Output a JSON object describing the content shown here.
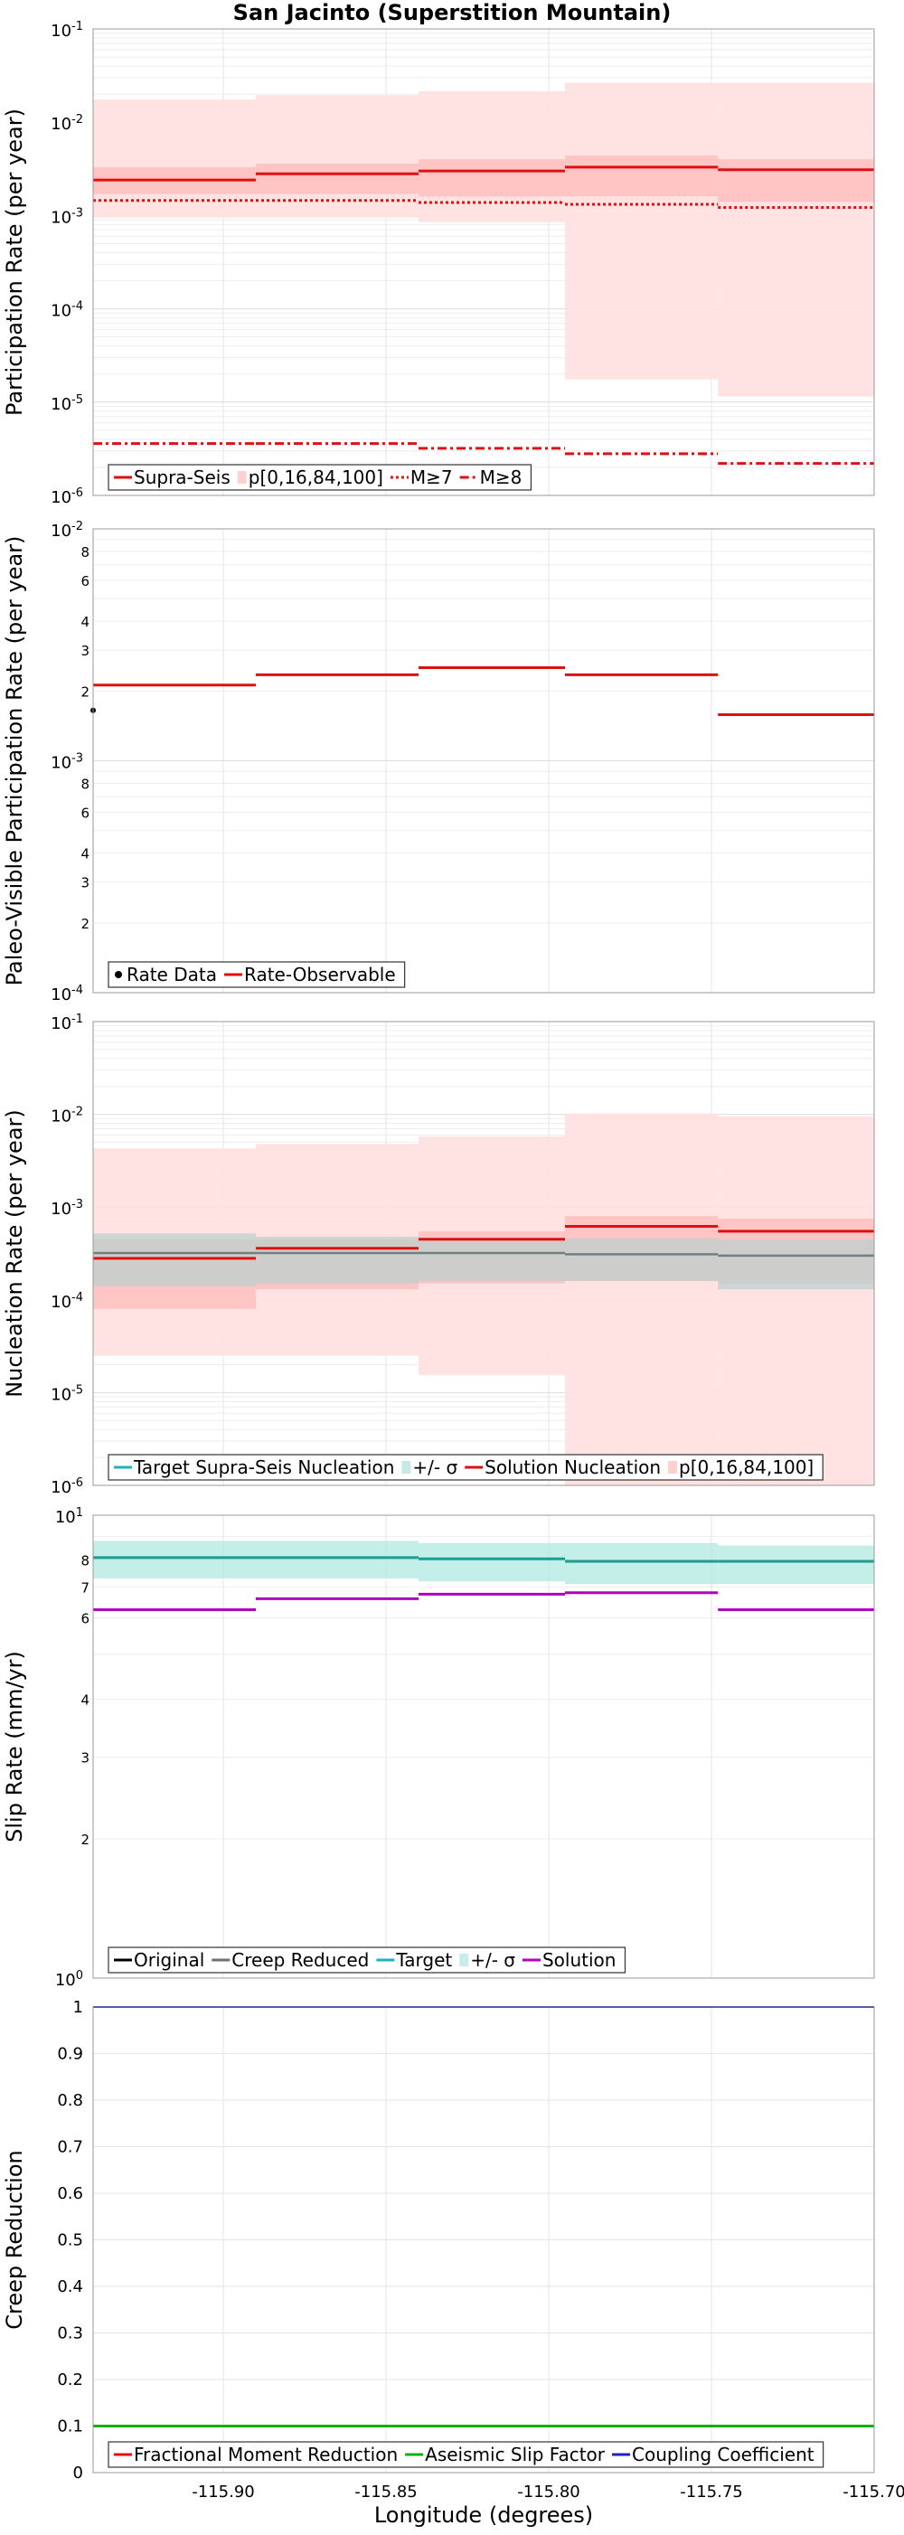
{
  "title": "San Jacinto (Superstition Mountain)",
  "x_axis": {
    "label": "Longitude (degrees)",
    "min": -115.94,
    "max": -115.7,
    "ticks": [
      -115.9,
      -115.85,
      -115.8,
      -115.75,
      -115.7
    ],
    "tick_labels": [
      "-115.90",
      "-115.85",
      "-115.80",
      "-115.75",
      "-115.70"
    ]
  },
  "segments": [
    -115.94,
    -115.89,
    -115.84,
    -115.795,
    -115.748,
    -115.7
  ],
  "chart_data": [
    {
      "type": "line",
      "panel": "participation",
      "ylabel": "Participation Rate (per year)",
      "yscale": "log",
      "ylim": [
        1e-06,
        0.1
      ],
      "ytick_labels": [
        {
          "v": 0.1,
          "b": "10",
          "e": "-1"
        },
        {
          "v": 0.01,
          "b": "10",
          "e": "-2"
        },
        {
          "v": 0.001,
          "b": "10",
          "e": "-3"
        },
        {
          "v": 0.0001,
          "b": "10",
          "e": "-4"
        },
        {
          "v": 1e-05,
          "b": "10",
          "e": "-5"
        },
        {
          "v": 1e-06,
          "b": "10",
          "e": "-6"
        }
      ],
      "bands": [
        {
          "role": "p0_100",
          "color": "#ffe0e0",
          "lower": [
            0.00095,
            0.00095,
            0.00085,
            1.75e-05,
            1.15e-05
          ],
          "upper": [
            0.0175,
            0.0195,
            0.0215,
            0.0265,
            0.0265
          ]
        },
        {
          "role": "p16_84",
          "color": "#ffc0c0",
          "lower": [
            0.0017,
            0.0017,
            0.0016,
            0.0016,
            0.0014
          ],
          "upper": [
            0.0033,
            0.0036,
            0.004,
            0.0044,
            0.004
          ]
        }
      ],
      "series": [
        {
          "name": "Supra-Seis",
          "color": "#e01010",
          "style": "solid",
          "width": 3,
          "values": [
            0.0024,
            0.0028,
            0.003,
            0.0033,
            0.0031
          ]
        },
        {
          "name": "M≥7",
          "color": "#e01010",
          "style": "dotted",
          "width": 3,
          "values": [
            0.00145,
            0.00145,
            0.00138,
            0.00132,
            0.00122
          ]
        },
        {
          "name": "M≥8",
          "color": "#e01010",
          "style": "dashdot",
          "width": 3,
          "values": [
            3.6e-06,
            3.6e-06,
            3.2e-06,
            2.8e-06,
            2.2e-06
          ]
        }
      ],
      "legend": {
        "position": "bottom-left",
        "items": [
          {
            "name": "Supra-Seis",
            "kind": "line",
            "color": "#e01010",
            "style": "solid"
          },
          {
            "name": "p[0,16,84,100]",
            "kind": "patch",
            "color": "#ffd0d0"
          },
          {
            "name": "M≥7",
            "kind": "line",
            "color": "#e01010",
            "style": "dotted"
          },
          {
            "name": "M≥8",
            "kind": "line",
            "color": "#e01010",
            "style": "dashdot"
          }
        ]
      }
    },
    {
      "type": "line",
      "panel": "paleo",
      "ylabel": "Paleo-Visible Participation Rate (per year)",
      "yscale": "log",
      "ylim": [
        0.0001,
        0.01
      ],
      "ytick_labels": [
        {
          "v": 0.01,
          "b": "10",
          "e": "-2"
        },
        {
          "v": 0.008,
          "t": "8"
        },
        {
          "v": 0.006,
          "t": "6"
        },
        {
          "v": 0.004,
          "t": "4"
        },
        {
          "v": 0.003,
          "t": "3"
        },
        {
          "v": 0.002,
          "t": "2"
        },
        {
          "v": 0.001,
          "b": "10",
          "e": "-3"
        },
        {
          "v": 0.0008,
          "t": "8"
        },
        {
          "v": 0.0006,
          "t": "6"
        },
        {
          "v": 0.0004,
          "t": "4"
        },
        {
          "v": 0.0003,
          "t": "3"
        },
        {
          "v": 0.0002,
          "t": "2"
        },
        {
          "v": 0.0001,
          "b": "10",
          "e": "-4"
        }
      ],
      "points": [
        {
          "x": -115.94,
          "y": 0.00165
        }
      ],
      "series": [
        {
          "name": "Rate-Observable",
          "color": "#e01010",
          "style": "solid",
          "width": 3,
          "values": [
            0.00212,
            0.00235,
            0.00252,
            0.00235,
            0.00158
          ]
        }
      ],
      "legend": {
        "position": "bottom-left",
        "items": [
          {
            "name": "Rate Data",
            "kind": "dot",
            "color": "#000000"
          },
          {
            "name": "Rate-Observable",
            "kind": "line",
            "color": "#e01010",
            "style": "solid"
          }
        ]
      }
    },
    {
      "type": "line",
      "panel": "nucleation",
      "ylabel": "Nucleation Rate (per year)",
      "yscale": "log",
      "ylim": [
        1e-06,
        0.1
      ],
      "ytick_labels": [
        {
          "v": 0.1,
          "b": "10",
          "e": "-1"
        },
        {
          "v": 0.01,
          "b": "10",
          "e": "-2"
        },
        {
          "v": 0.001,
          "b": "10",
          "e": "-3"
        },
        {
          "v": 0.0001,
          "b": "10",
          "e": "-4"
        },
        {
          "v": 1e-05,
          "b": "10",
          "e": "-5"
        },
        {
          "v": 1e-06,
          "b": "10",
          "e": "-6"
        }
      ],
      "bands": [
        {
          "role": "p0_100",
          "color": "#ffe0e0",
          "lower": [
            2.5e-05,
            2.5e-05,
            1.55e-05,
            1e-06,
            1e-06
          ],
          "upper": [
            0.0043,
            0.0048,
            0.0058,
            0.0102,
            0.0095
          ]
        },
        {
          "role": "p16_84",
          "color": "#ffc0c0",
          "lower": [
            8e-05,
            0.00013,
            0.00015,
            0.00016,
            0.00015
          ],
          "upper": [
            0.00045,
            0.00045,
            0.00055,
            0.0008,
            0.00075
          ]
        },
        {
          "role": "target_sigma",
          "color": "#bcd2cd",
          "lower": [
            0.00014,
            0.00015,
            0.00016,
            0.00016,
            0.00013
          ],
          "upper": [
            0.00052,
            0.00048,
            0.00047,
            0.00046,
            0.00045
          ]
        }
      ],
      "series": [
        {
          "name": "Target Supra-Seis Nucleation",
          "color": "#708080",
          "style": "solid",
          "width": 2.5,
          "values": [
            0.00032,
            0.00032,
            0.00032,
            0.00031,
            0.0003
          ]
        },
        {
          "name": "Solution Nucleation",
          "color": "#e01010",
          "style": "solid",
          "width": 3,
          "values": [
            0.00028,
            0.00036,
            0.00045,
            0.00062,
            0.00055
          ]
        }
      ],
      "legend": {
        "position": "bottom-left",
        "items": [
          {
            "name": "Target Supra-Seis Nucleation",
            "kind": "line",
            "color": "#20b0c0",
            "style": "solid"
          },
          {
            "name": "+/- σ",
            "kind": "patch",
            "color": "#c8e8e8"
          },
          {
            "name": "Solution Nucleation",
            "kind": "line",
            "color": "#e01010",
            "style": "solid"
          },
          {
            "name": "p[0,16,84,100]",
            "kind": "patch",
            "color": "#ffd0d0"
          }
        ]
      }
    },
    {
      "type": "line",
      "panel": "slip",
      "ylabel": "Slip Rate (mm/yr)",
      "yscale": "log",
      "ylim": [
        1,
        10
      ],
      "ytick_labels": [
        {
          "v": 10,
          "b": "10",
          "e": "1"
        },
        {
          "v": 8,
          "t": "8"
        },
        {
          "v": 7,
          "t": "7"
        },
        {
          "v": 6,
          "t": "6"
        },
        {
          "v": 4,
          "t": "4"
        },
        {
          "v": 3,
          "t": "3"
        },
        {
          "v": 2,
          "t": "2"
        },
        {
          "v": 1,
          "b": "10",
          "e": "0"
        }
      ],
      "bands": [
        {
          "role": "target_sigma",
          "color": "#b0e8e0",
          "lower": [
            7.3,
            7.3,
            7.2,
            7.1,
            7.1
          ],
          "upper": [
            8.8,
            8.8,
            8.7,
            8.7,
            8.6
          ]
        }
      ],
      "series": [
        {
          "name": "Target",
          "color": "#1a9e94",
          "style": "solid",
          "width": 3,
          "values": [
            8.1,
            8.1,
            8.05,
            7.95,
            7.95
          ]
        },
        {
          "name": "Solution",
          "color": "#b000c0",
          "style": "solid",
          "width": 3,
          "values": [
            6.25,
            6.6,
            6.75,
            6.8,
            6.25
          ]
        }
      ],
      "legend": {
        "position": "bottom-left",
        "items": [
          {
            "name": "Original",
            "kind": "line",
            "color": "#000000",
            "style": "solid"
          },
          {
            "name": "Creep Reduced",
            "kind": "line",
            "color": "#707070",
            "style": "solid"
          },
          {
            "name": "Target",
            "kind": "line",
            "color": "#20b0c0",
            "style": "solid"
          },
          {
            "name": "+/- σ",
            "kind": "patch",
            "color": "#c8ecec"
          },
          {
            "name": "Solution",
            "kind": "line",
            "color": "#b000c0",
            "style": "solid"
          }
        ]
      }
    },
    {
      "type": "line",
      "panel": "creep",
      "ylabel": "Creep Reduction",
      "yscale": "linear",
      "ylim": [
        0,
        1
      ],
      "ytick_labels": [
        {
          "v": 1,
          "t": "1"
        },
        {
          "v": 0.9,
          "t": "0.9"
        },
        {
          "v": 0.8,
          "t": "0.8"
        },
        {
          "v": 0.7,
          "t": "0.7"
        },
        {
          "v": 0.6,
          "t": "0.6"
        },
        {
          "v": 0.5,
          "t": "0.5"
        },
        {
          "v": 0.4,
          "t": "0.4"
        },
        {
          "v": 0.3,
          "t": "0.3"
        },
        {
          "v": 0.2,
          "t": "0.2"
        },
        {
          "v": 0.1,
          "t": "0.1"
        },
        {
          "v": 0,
          "t": "0"
        }
      ],
      "series": [
        {
          "name": "Fractional Moment Reduction",
          "color": "#e01010",
          "style": "solid",
          "width": 2,
          "values": [
            0.1,
            0.1,
            0.1,
            0.1,
            0.1
          ]
        },
        {
          "name": "Aseismic Slip Factor",
          "color": "#10b010",
          "style": "solid",
          "width": 3,
          "values": [
            0.1,
            0.1,
            0.1,
            0.1,
            0.1
          ]
        },
        {
          "name": "Coupling Coefficient",
          "color": "#2020c0",
          "style": "solid",
          "width": 2,
          "values": [
            1.0,
            1.0,
            1.0,
            1.0,
            1.0
          ]
        }
      ],
      "legend": {
        "position": "bottom-left",
        "items": [
          {
            "name": "Fractional Moment Reduction",
            "kind": "line",
            "color": "#e01010",
            "style": "solid"
          },
          {
            "name": "Aseismic Slip Factor",
            "kind": "line",
            "color": "#10b010",
            "style": "solid"
          },
          {
            "name": "Coupling Coefficient",
            "kind": "line",
            "color": "#2020c0",
            "style": "solid"
          }
        ]
      }
    }
  ]
}
